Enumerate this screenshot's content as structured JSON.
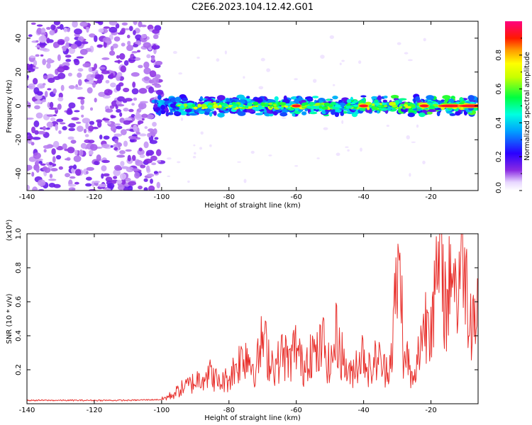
{
  "title": "C2E6.2023.104.12.42.G01",
  "chart_data": [
    {
      "type": "heatmap",
      "title": "C2E6.2023.104.12.42.G01",
      "xlabel": "Height of straight line (km)",
      "ylabel": "Frequency (Hz)",
      "xlim": [
        -140,
        -6
      ],
      "ylim": [
        -50,
        50
      ],
      "x_ticks": [
        "-140",
        "-120",
        "-100",
        "-80",
        "-60",
        "-40",
        "-20"
      ],
      "y_ticks": [
        "-40",
        "-20",
        "0",
        "20",
        "40"
      ],
      "colorbar": {
        "label": "Normalized spectral amplitude",
        "range": [
          0.0,
          1.0
        ],
        "ticks": [
          "0.0",
          "0.2",
          "0.4",
          "0.6",
          "0.8"
        ],
        "colormap": "rainbow (white/lavender-purple-blue-cyan-green-yellow-orange-red-magenta)"
      },
      "features": [
        {
          "description": "diffuse noise",
          "x_range": [
            -140,
            -100
          ],
          "y_range": [
            -50,
            50
          ],
          "amplitude": [
            0.0,
            0.15
          ]
        },
        {
          "description": "signal band near 0 Hz",
          "x_range": [
            -102,
            -6
          ],
          "center_hz": 0,
          "width_hz": 8,
          "amplitude": [
            0.2,
            1.0
          ]
        },
        {
          "description": "strong peaks",
          "x_points": [
            -60,
            -40,
            -22,
            -14,
            -8
          ],
          "y_value": 0,
          "amplitude": 1.0
        }
      ]
    },
    {
      "type": "line",
      "xlabel": "Height of straight line (km)",
      "ylabel": "SNR (10 * v/v)",
      "y_multiplier": "(x10⁴)",
      "xlim": [
        -140,
        -6
      ],
      "ylim": [
        0,
        1.0
      ],
      "x_ticks": [
        "-140",
        "-120",
        "-100",
        "-80",
        "-60",
        "-40",
        "-20"
      ],
      "y_ticks": [
        "0.2",
        "0.4",
        "0.6",
        "0.8",
        "1.0"
      ],
      "color": "#e8302c",
      "series": [
        {
          "x": [
            -140,
            -130,
            -120,
            -110,
            -100,
            -97,
            -94,
            -90,
            -87,
            -85,
            -83,
            -80,
            -78,
            -75,
            -72,
            -70,
            -68,
            -66,
            -64,
            -62,
            -60,
            -58,
            -56,
            -54,
            -52,
            -50,
            -48,
            -46,
            -44,
            -42,
            -40,
            -38,
            -36,
            -34,
            -32,
            -30,
            -29,
            -28,
            -27,
            -26,
            -25,
            -24,
            -23,
            -22,
            -21,
            -20,
            -19,
            -18,
            -17,
            -16,
            -15,
            -14,
            -13,
            -12,
            -11,
            -10,
            -9,
            -8,
            -7,
            -6
          ],
          "y": [
            0.02,
            0.02,
            0.02,
            0.02,
            0.025,
            0.05,
            0.09,
            0.13,
            0.18,
            0.17,
            0.12,
            0.15,
            0.22,
            0.3,
            0.2,
            0.38,
            0.27,
            0.22,
            0.3,
            0.24,
            0.35,
            0.2,
            0.33,
            0.27,
            0.36,
            0.2,
            0.41,
            0.25,
            0.16,
            0.25,
            0.3,
            0.18,
            0.28,
            0.2,
            0.25,
            0.72,
            0.78,
            0.2,
            0.29,
            0.15,
            0.12,
            0.25,
            0.4,
            0.45,
            0.52,
            0.58,
            0.62,
            0.7,
            0.98,
            0.62,
            0.55,
            0.88,
            0.75,
            0.6,
            0.95,
            0.8,
            0.62,
            0.56,
            0.52,
            0.54
          ]
        }
      ]
    }
  ]
}
